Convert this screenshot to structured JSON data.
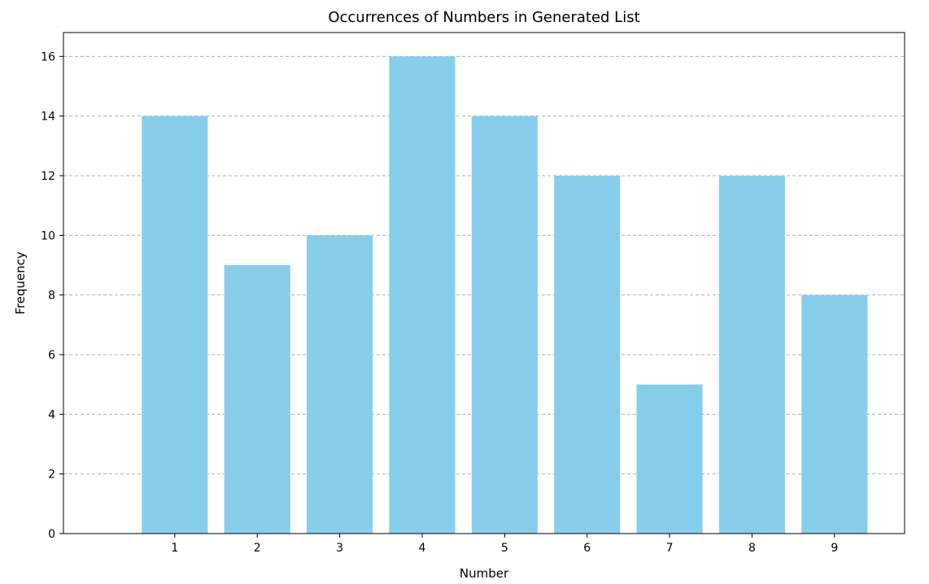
{
  "chart_data": {
    "type": "bar",
    "title": "Occurrences of Numbers in Generated List",
    "xlabel": "Number",
    "ylabel": "Frequency",
    "categories": [
      "1",
      "2",
      "3",
      "4",
      "5",
      "6",
      "7",
      "8",
      "9"
    ],
    "values": [
      14,
      9,
      10,
      16,
      14,
      12,
      5,
      12,
      8
    ],
    "ylim": [
      0,
      16.8
    ],
    "yticks": [
      "0",
      "2",
      "4",
      "6",
      "8",
      "10",
      "12",
      "14",
      "16"
    ],
    "grid": "horizontal dashed",
    "bar_color": "#87ceeb"
  }
}
